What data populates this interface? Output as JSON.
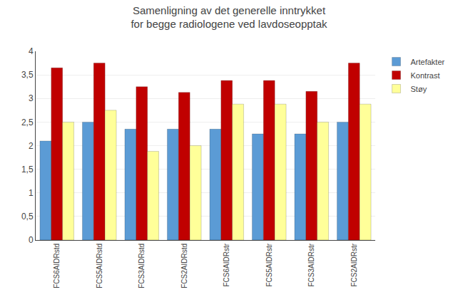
{
  "chart_data": {
    "type": "bar",
    "title": "Samenligning av det generelle inntrykket\nfor begge radiologene ved lavdoseopptak",
    "categories": [
      "FCS6AIDRstd",
      "FCS5AIDRstd",
      "FCS3AIDRstd",
      "FCS2AIDRstd",
      "FCS6AIDRstr",
      "FCS5AIDRstr",
      "FCS3AIDRstr",
      "FCS2AIDRstr"
    ],
    "series": [
      {
        "name": "Artefakter",
        "color": "#5B9BD5",
        "values": [
          2.1,
          2.5,
          2.35,
          2.35,
          2.35,
          2.25,
          2.25,
          2.5
        ]
      },
      {
        "name": "Kontrast",
        "color": "#C00000",
        "values": [
          3.65,
          3.75,
          3.25,
          3.13,
          3.38,
          3.38,
          3.15,
          3.75
        ]
      },
      {
        "name": "Støy",
        "color": "#FFFF99",
        "values": [
          2.5,
          2.75,
          1.88,
          2.0,
          2.88,
          2.88,
          2.5,
          2.88
        ]
      }
    ],
    "ylim": [
      0,
      4
    ],
    "yticks": [
      0,
      {
        "value": 0.5,
        "label": "0,5"
      },
      1,
      {
        "value": 1.5,
        "label": "1,5"
      },
      2,
      {
        "value": 2.5,
        "label": "2,5"
      },
      3,
      {
        "value": 3.5,
        "label": "3,5"
      },
      4
    ],
    "grid": true,
    "legend": "upper right"
  }
}
